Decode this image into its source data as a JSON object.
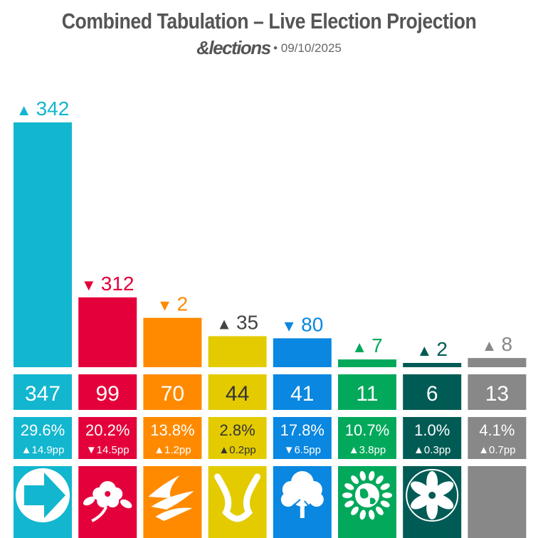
{
  "header": {
    "title": "Combined Tabulation – Live Election Projection",
    "brand": "&lections",
    "date": "• 09/10/2025"
  },
  "chart_data": {
    "type": "bar",
    "title": "Combined Tabulation – Live Election Projection",
    "xlabel": "",
    "ylabel": "",
    "ylim": [
      0,
      347
    ],
    "parties": [
      {
        "id": "reform",
        "color": "#12B6CF",
        "seats": 347,
        "change_dir": "up",
        "change": "342",
        "vote": "29.6%",
        "vote_change": "▲14.9pp",
        "logo": "arrow-logo-icon"
      },
      {
        "id": "labour",
        "color": "#E4003B",
        "seats": 99,
        "change_dir": "down",
        "change": "312",
        "vote": "20.2%",
        "vote_change": "▼14.5pp",
        "logo": "rose-logo-icon"
      },
      {
        "id": "libdem",
        "color": "#FF8A00",
        "seats": 70,
        "change_dir": "down",
        "change": "2",
        "vote": "13.8%",
        "vote_change": "▲1.2pp",
        "logo": "bird-logo-icon"
      },
      {
        "id": "snp",
        "color": "#E3CB00",
        "seats": 44,
        "change_dir": "up",
        "change": "35",
        "vote": "2.8%",
        "vote_change": "▲0.2pp",
        "logo": "saltire-logo-icon"
      },
      {
        "id": "conservative",
        "color": "#0A87E0",
        "seats": 41,
        "change_dir": "down",
        "change": "80",
        "vote": "17.8%",
        "vote_change": "▼6.5pp",
        "logo": "tree-logo-icon"
      },
      {
        "id": "green",
        "color": "#02A95B",
        "seats": 11,
        "change_dir": "up",
        "change": "7",
        "vote": "10.7%",
        "vote_change": "▲3.8pp",
        "logo": "globe-logo-icon"
      },
      {
        "id": "plaid",
        "color": "#005B54",
        "seats": 6,
        "change_dir": "up",
        "change": "2",
        "vote": "1.0%",
        "vote_change": "▲0.3pp",
        "logo": "flower-logo-icon"
      },
      {
        "id": "others",
        "color": "#888888",
        "seats": 13,
        "change_dir": "up",
        "change": "8",
        "vote": "4.1%",
        "vote_change": "▲0.7pp",
        "logo": ""
      }
    ]
  }
}
